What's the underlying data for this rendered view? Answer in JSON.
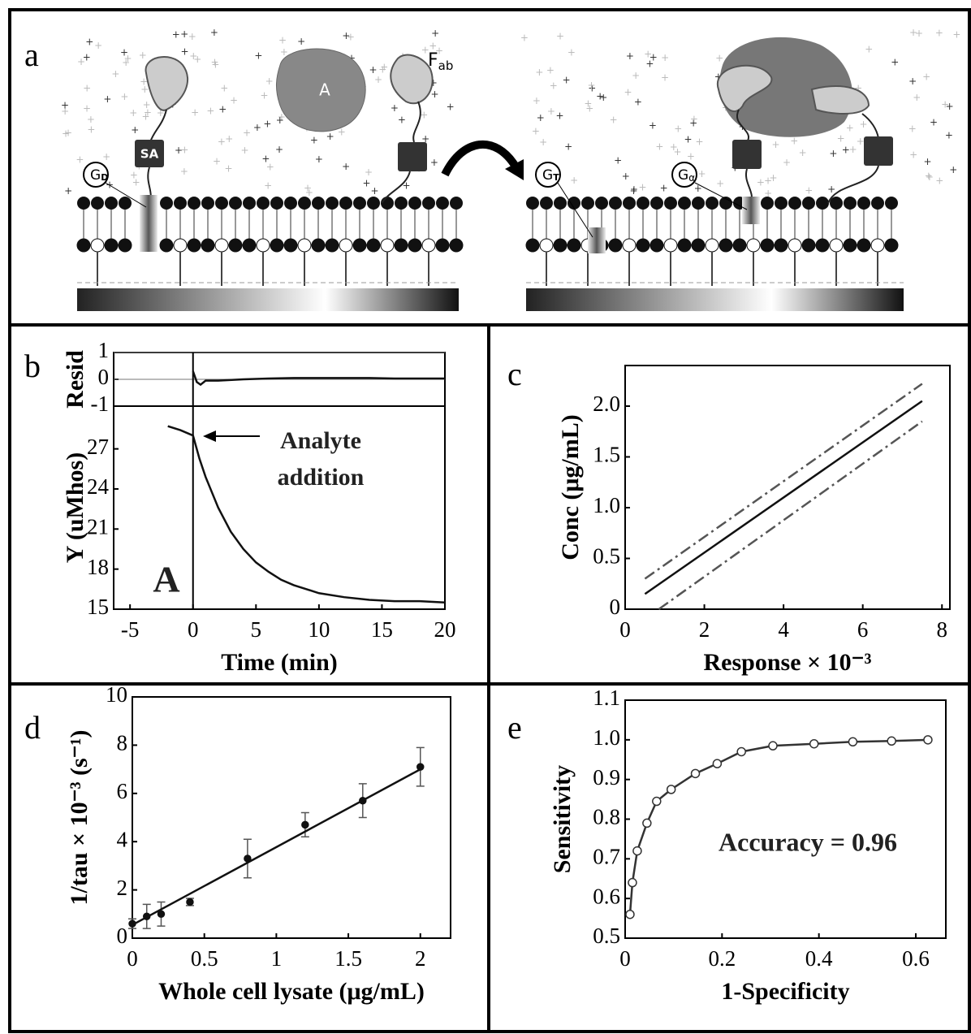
{
  "diagram": {
    "panel": "a",
    "analyte": "A",
    "fab": "F",
    "fab_sub": "ab",
    "sa": "SA",
    "g": "G",
    "gd_sub": "D",
    "gt_sub": "T",
    "ga_sub": "α"
  },
  "chart_data": [
    {
      "type": "line",
      "panel": "b",
      "ylabel": "Resid",
      "xlim": [
        -6.3,
        20
      ],
      "ylim": [
        -1,
        1
      ],
      "yticks": [
        -1,
        0,
        1
      ],
      "grid": true,
      "vline": 0,
      "series": [
        {
          "color": "#111111",
          "x": [
            0,
            0.3,
            0.6,
            1,
            2,
            4,
            6,
            8,
            10,
            12,
            14,
            16,
            18,
            20
          ],
          "values": [
            0.3,
            -0.1,
            -0.2,
            -0.05,
            -0.05,
            0,
            0.03,
            0.05,
            0.05,
            0.05,
            0.05,
            0.03,
            0.03,
            0.03
          ]
        }
      ]
    },
    {
      "type": "line",
      "xlabel": "Time (min)",
      "ylabel": "Y (uMhos)",
      "xlim": [
        -6.3,
        20
      ],
      "ylim": [
        15,
        30.2
      ],
      "xticks": [
        -5,
        0,
        5,
        10,
        15,
        20
      ],
      "yticks": [
        15,
        18,
        21,
        24,
        27
      ],
      "vline": 0,
      "annotations": [
        "Analyte",
        "addition",
        "A"
      ],
      "series": [
        {
          "color": "#111111",
          "x": [
            -2,
            -1,
            0,
            0.5,
            1,
            2,
            3,
            4,
            5,
            6,
            7,
            8,
            10,
            12,
            14,
            16,
            18,
            20
          ],
          "values": [
            28.7,
            28.4,
            28.0,
            26.3,
            24.9,
            22.6,
            20.8,
            19.5,
            18.5,
            17.8,
            17.2,
            16.8,
            16.2,
            15.9,
            15.7,
            15.6,
            15.6,
            15.5
          ]
        }
      ]
    },
    {
      "type": "line",
      "panel": "c",
      "xlabel": "Response × 10⁻³",
      "ylabel": "Conc (μg/mL)",
      "xlim": [
        0,
        8.2
      ],
      "ylim": [
        0,
        2.4
      ],
      "xticks": [
        0,
        2,
        4,
        6,
        8
      ],
      "yticks": [
        0,
        0.5,
        {
          "value": 1,
          "label": "1.0"
        },
        1.5,
        {
          "value": 2,
          "label": "2.0"
        }
      ],
      "series": [
        {
          "color": "#111111",
          "x": [
            0.5,
            7.5
          ],
          "values": [
            0.15,
            2.05
          ]
        },
        {
          "color": "#555555",
          "dash": true,
          "x": [
            0.5,
            7.5
          ],
          "values": [
            0.3,
            2.22
          ]
        },
        {
          "color": "#555555",
          "dash": true,
          "x": [
            0.85,
            7.5
          ],
          "values": [
            0.0,
            1.85
          ]
        }
      ]
    },
    {
      "type": "scatter",
      "panel": "d",
      "xlabel": "Whole cell lysate (μg/mL)",
      "ylabel": "1/tau × 10⁻³ (s⁻¹)",
      "xlim": [
        0,
        2.21
      ],
      "ylim": [
        0,
        10
      ],
      "xticks": [
        0,
        0.5,
        1,
        1.5,
        2
      ],
      "yticks": [
        0,
        2,
        4,
        6,
        8,
        10
      ],
      "series": [
        {
          "color": "#111111",
          "marker": "filled",
          "x": [
            0,
            0.1,
            0.2,
            0.4,
            0.8,
            1.2,
            1.6,
            2.0
          ],
          "values": [
            0.6,
            0.9,
            1.0,
            1.5,
            3.3,
            4.7,
            5.7,
            7.1
          ],
          "errors": [
            0.2,
            0.5,
            0.5,
            0.15,
            0.8,
            0.5,
            0.7,
            0.8
          ]
        },
        {
          "color": "#111111",
          "x": [
            0,
            2
          ],
          "values": [
            0.55,
            7.0
          ]
        }
      ]
    },
    {
      "type": "line",
      "panel": "e",
      "xlabel": "1-Specificity",
      "ylabel": "Sensitivity",
      "xlim": [
        0,
        0.662
      ],
      "ylim": [
        0.5,
        1.1
      ],
      "xticks": [
        0,
        0.2,
        0.4,
        0.6
      ],
      "yticks": [
        0.5,
        0.6,
        0.7,
        0.8,
        0.9,
        {
          "value": 1,
          "label": "1.0"
        },
        1.1
      ],
      "annotations": [
        "Accuracy = 0.96"
      ],
      "series": [
        {
          "color": "#333333",
          "marker": "open",
          "x": [
            0.01,
            0.015,
            0.025,
            0.045,
            0.065,
            0.095,
            0.145,
            0.19,
            0.24,
            0.305,
            0.39,
            0.47,
            0.55,
            0.625
          ],
          "values": [
            0.56,
            0.64,
            0.72,
            0.79,
            0.845,
            0.875,
            0.915,
            0.94,
            0.97,
            0.985,
            0.99,
            0.995,
            0.997,
            1.0
          ]
        }
      ]
    }
  ]
}
